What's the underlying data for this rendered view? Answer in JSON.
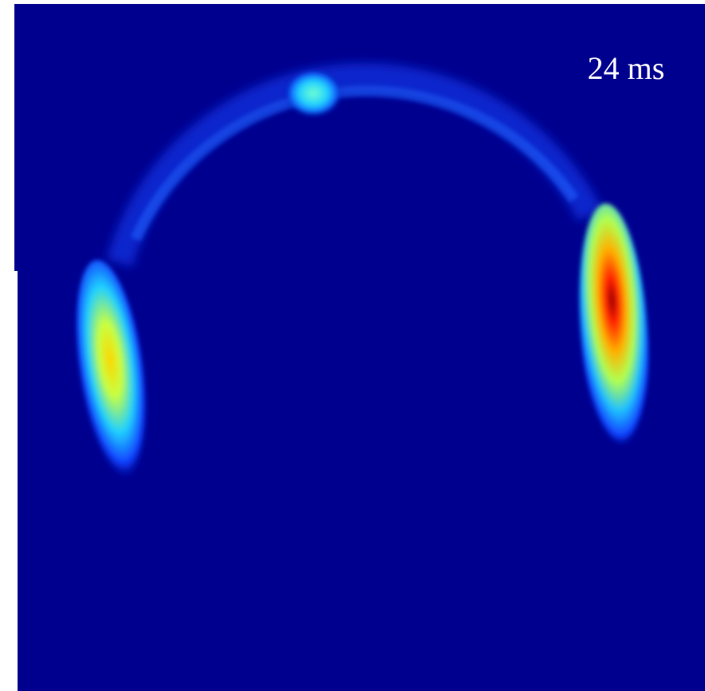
{
  "image": {
    "label": "24 ms"
  }
}
